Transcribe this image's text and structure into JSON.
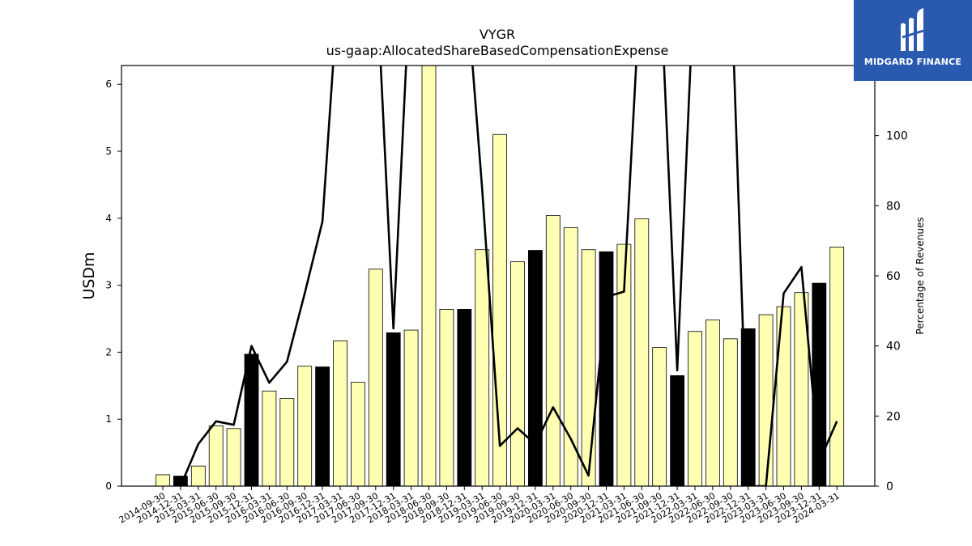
{
  "chart_data": {
    "type": "bar",
    "title": "VYGR",
    "subtitle": "us-gaap:AllocatedShareBasedCompensationExpense",
    "ylabel": "USDm",
    "y2label": "Percentage of Revenues",
    "ylim": [
      0,
      6.28
    ],
    "y2lim": [
      0,
      120
    ],
    "yticks": [
      0,
      1,
      2,
      3,
      4,
      5,
      6
    ],
    "y2ticks": [
      0,
      20,
      40,
      60,
      80,
      100
    ],
    "categories": [
      "2014-09-30",
      "2014-12-31",
      "2015-03-31",
      "2015-06-30",
      "2015-09-30",
      "2015-12-31",
      "2016-03-31",
      "2016-06-30",
      "2016-09-30",
      "2016-12-31",
      "2017-03-31",
      "2017-06-30",
      "2017-09-30",
      "2017-12-31",
      "2018-03-31",
      "2018-06-30",
      "2018-09-30",
      "2018-12-31",
      "2019-03-31",
      "2019-06-30",
      "2019-09-30",
      "2019-12-31",
      "2020-03-31",
      "2020-06-30",
      "2020-09-30",
      "2020-12-31",
      "2021-03-31",
      "2021-06-30",
      "2021-09-30",
      "2021-12-31",
      "2022-03-31",
      "2022-06-30",
      "2022-09-30",
      "2022-12-31",
      "2023-03-31",
      "2023-06-30",
      "2023-09-30",
      "2023-12-31",
      "2024-03-31"
    ],
    "series": [
      {
        "values": [
          0.17,
          0.15,
          0.3,
          0.9,
          0.86,
          1.97,
          1.42,
          1.31,
          1.79,
          1.78,
          2.17,
          1.55,
          3.24,
          2.29,
          2.33,
          6.28,
          2.64,
          2.64,
          3.53,
          5.25,
          3.35,
          3.52,
          4.04,
          3.86,
          3.53,
          3.5,
          3.61,
          3.99,
          2.07,
          1.65,
          2.31,
          2.48,
          2.2,
          2.35,
          2.56,
          2.68,
          2.89,
          3.03,
          3.57
        ],
        "highlight": [
          false,
          true,
          false,
          false,
          false,
          true,
          false,
          false,
          false,
          true,
          false,
          false,
          false,
          true,
          false,
          false,
          false,
          true,
          false,
          false,
          false,
          true,
          false,
          false,
          false,
          true,
          false,
          false,
          false,
          true,
          false,
          false,
          false,
          true,
          false,
          false,
          false,
          true,
          false
        ],
        "color": "#ffffb3",
        "highlight_color": "#000000"
      },
      {
        "axis": "right",
        "type": "line",
        "color": "#000000",
        "values": [
          null,
          0,
          12,
          18.5,
          17.5,
          40,
          29.5,
          35.5,
          55,
          75.5,
          150,
          null,
          150,
          45,
          150,
          null,
          null,
          150,
          85,
          11.5,
          16.5,
          12,
          22.5,
          13.5,
          3,
          54,
          55.5,
          150,
          150,
          33,
          150,
          null,
          150,
          0,
          0,
          55,
          62.5,
          7,
          18.5
        ]
      }
    ]
  },
  "logo": {
    "text": "MIDGARD FINANCE"
  }
}
